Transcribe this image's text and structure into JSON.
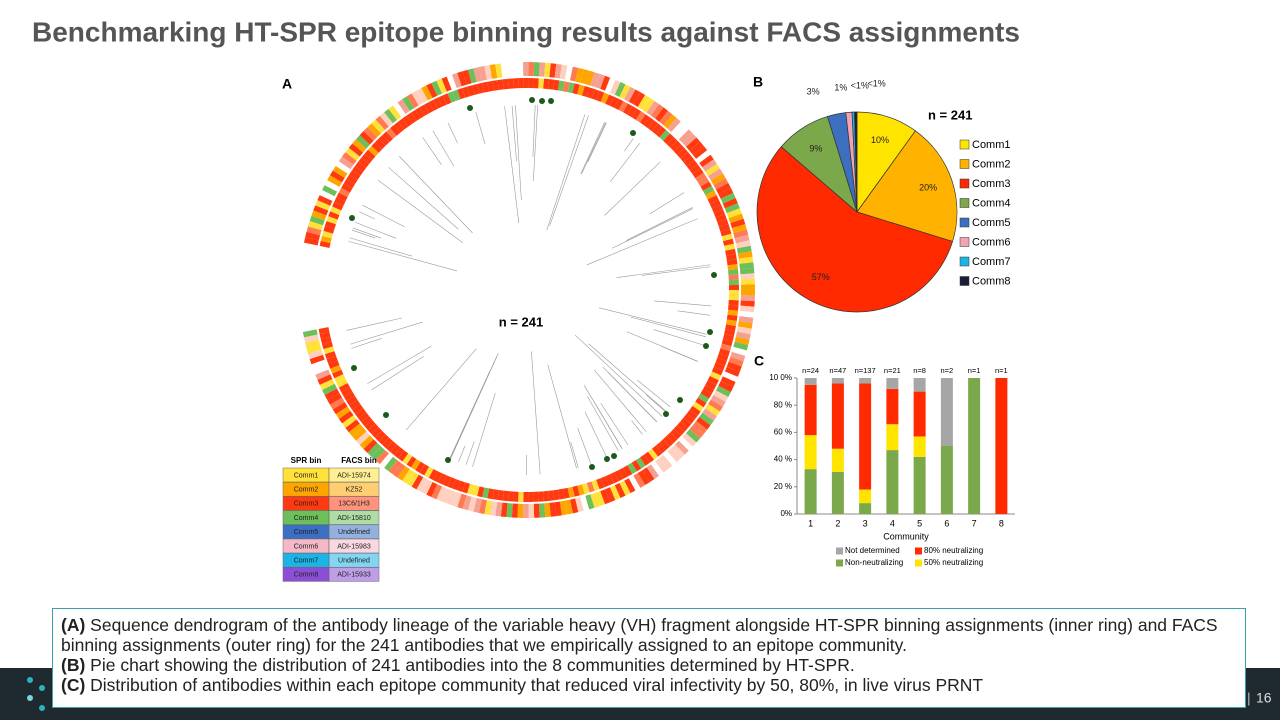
{
  "title": "Benchmarking HT-SPR epitope binning results against FACS assignments",
  "panel_a": {
    "label": "A",
    "center_label": "n = 241",
    "legend_table": {
      "header": [
        "SPR bin",
        "FACS bin"
      ],
      "rows": [
        [
          "Comm1",
          "ADI-15974"
        ],
        [
          "Comm2",
          "KZ52"
        ],
        [
          "Comm3",
          "13C6/1H3"
        ],
        [
          "Comm4",
          "ADI-15810"
        ],
        [
          "Comm5",
          "Undefined"
        ],
        [
          "Comm6",
          "ADI-15983"
        ],
        [
          "Comm7",
          "Undefined"
        ],
        [
          "Comm8",
          "ADI-15933"
        ]
      ],
      "colors": [
        "#ffe13a",
        "#ffa500",
        "#ff3a10",
        "#6dbf5a",
        "#3a6fc4",
        "#f5b8c8",
        "#1cb4e6",
        "#8a4fd6"
      ]
    }
  },
  "panel_b": {
    "label": "B",
    "type": "pie",
    "annotation": "n = 241",
    "categories": [
      "Comm1",
      "Comm2",
      "Comm3",
      "Comm4",
      "Comm5",
      "Comm6",
      "Comm7",
      "Comm8"
    ],
    "values": [
      10,
      20,
      57,
      9,
      3,
      1,
      0.4,
      0.4
    ],
    "value_labels": [
      "10%",
      "20%",
      "57%",
      "9%",
      "3%",
      "1%",
      "<1%",
      "<1%"
    ],
    "colors": [
      "#ffe400",
      "#ffb300",
      "#ff2a00",
      "#7aa84a",
      "#3d6fbf",
      "#f4a3b5",
      "#1cb4e6",
      "#1b1b3a"
    ]
  },
  "panel_c": {
    "label": "C",
    "type": "bar",
    "stacked": true,
    "x_label": "Community",
    "categories": [
      "1",
      "2",
      "3",
      "4",
      "5",
      "6",
      "7",
      "8"
    ],
    "count_labels": [
      "n=24",
      "n=47",
      "n=137",
      "n=21",
      "n=8",
      "n=2",
      "n=1",
      "n=1"
    ],
    "ylim": [
      0,
      100
    ],
    "yticks": [
      {
        "value": 0,
        "label": "0%"
      },
      {
        "value": 20,
        "label": "20 %"
      },
      {
        "value": 40,
        "label": "40 %"
      },
      {
        "value": 60,
        "label": "60 %"
      },
      {
        "value": 80,
        "label": "80 %"
      },
      {
        "value": 100,
        "label": "10 0%"
      }
    ],
    "series": [
      {
        "name": "Non-neutralizing",
        "color": "#7aa84a",
        "values": [
          33,
          31,
          8,
          47,
          42,
          50,
          100,
          0
        ]
      },
      {
        "name": "50% neutralizing",
        "color": "#ffe400",
        "values": [
          25,
          17,
          10,
          19,
          15,
          0,
          0,
          0
        ]
      },
      {
        "name": "80% neutralizing",
        "color": "#ff2a00",
        "values": [
          37,
          48,
          78,
          26,
          33,
          0,
          0,
          100
        ]
      },
      {
        "name": "Not determined",
        "color": "#a6a6a6",
        "values": [
          5,
          4,
          4,
          8,
          10,
          50,
          0,
          0
        ]
      }
    ]
  },
  "caption": [
    {
      "label": "(A)",
      "text": " Sequence dendrogram of the antibody lineage of the variable heavy (VH) fragment alongside HT-SPR binning assignments (inner ring) and FACS binning assignments (outer ring) for the 241 antibodies that we empirically assigned to an epitope community."
    },
    {
      "label": "(B)",
      "text": " Pie chart showing the distribution of 241 antibodies into the 8 communities determined by HT-SPR."
    },
    {
      "label": "(C)",
      "text": " Distribution of antibodies within each epitope community that reduced viral infectivity by 50, 80%, in live virus PRNT"
    }
  ],
  "page_number": "16"
}
